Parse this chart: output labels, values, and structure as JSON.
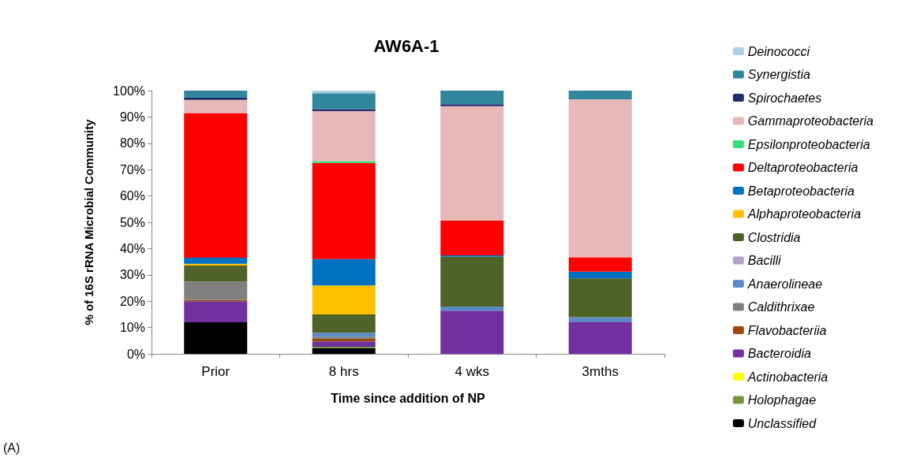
{
  "chart_data": {
    "type": "bar",
    "stacked": true,
    "title": "AW6A-1",
    "xlabel": "Time since addition of NP",
    "ylabel": "% of 16S rRNA Microbial Community",
    "categories": [
      "Prior",
      "8 hrs",
      "4 wks",
      "3mths"
    ],
    "ylim": [
      0,
      100
    ],
    "yticks": [
      {
        "value": 0,
        "label": "0%"
      },
      {
        "value": 10,
        "label": "10%"
      },
      {
        "value": 20,
        "label": "20%"
      },
      {
        "value": 30,
        "label": "30%"
      },
      {
        "value": 40,
        "label": "40%"
      },
      {
        "value": 50,
        "label": "50%"
      },
      {
        "value": 60,
        "label": "60%"
      },
      {
        "value": 70,
        "label": "70%"
      },
      {
        "value": 80,
        "label": "80%"
      },
      {
        "value": 90,
        "label": "90%"
      },
      {
        "value": 100,
        "label": "100%"
      }
    ],
    "grid": false,
    "legend": "right",
    "annotations": [
      "(A)"
    ],
    "series": [
      {
        "name": "Unclassified",
        "color": "#000000",
        "values": [
          12,
          2.2,
          0,
          0
        ]
      },
      {
        "name": "Holophagae",
        "color": "#77933c",
        "values": [
          0,
          0.5,
          0,
          0
        ]
      },
      {
        "name": "Actinobacteria",
        "color": "#ffff00",
        "values": [
          0,
          0,
          0,
          0
        ]
      },
      {
        "name": "Bacteroidia",
        "color": "#7030a0",
        "values": [
          8,
          2,
          16.4,
          12.2
        ]
      },
      {
        "name": "Flavobacteriia",
        "color": "#9c4a0c",
        "values": [
          0.5,
          1,
          0,
          0
        ]
      },
      {
        "name": "Caldithrixae",
        "color": "#808080",
        "values": [
          7,
          0.8,
          0,
          0
        ]
      },
      {
        "name": "Anaerolineae",
        "color": "#5b8bc4",
        "values": [
          0,
          1.5,
          1.6,
          1.7
        ]
      },
      {
        "name": "Bacilli",
        "color": "#b3a2c7",
        "values": [
          0,
          0,
          0,
          0
        ]
      },
      {
        "name": "Clostridia",
        "color": "#4f6228",
        "values": [
          6,
          7,
          18.9,
          14.8
        ]
      },
      {
        "name": "Alphaproteobacteria",
        "color": "#ffc000",
        "values": [
          0.7,
          11,
          0,
          0
        ]
      },
      {
        "name": "Betaproteobacteria",
        "color": "#0070c0",
        "values": [
          2.3,
          10,
          0.5,
          2.5
        ]
      },
      {
        "name": "Deltaproteobacteria",
        "color": "#ff0000",
        "values": [
          55,
          36.5,
          13.3,
          5.5
        ]
      },
      {
        "name": "Epsilonproteobacteria",
        "color": "#33dd77",
        "values": [
          0,
          0.7,
          0,
          0
        ]
      },
      {
        "name": "Gammaproteobacteria",
        "color": "#e6b9b8",
        "values": [
          5,
          19,
          43.4,
          60
        ]
      },
      {
        "name": "Spirochaetes",
        "color": "#1f2d6b",
        "values": [
          0.8,
          0.8,
          0.7,
          0
        ]
      },
      {
        "name": "Synergistia",
        "color": "#31859c",
        "values": [
          2.7,
          6,
          5.2,
          3.3
        ]
      },
      {
        "name": "Deinococci",
        "color": "#a9cfe0",
        "values": [
          0,
          1,
          0,
          0
        ]
      }
    ]
  }
}
